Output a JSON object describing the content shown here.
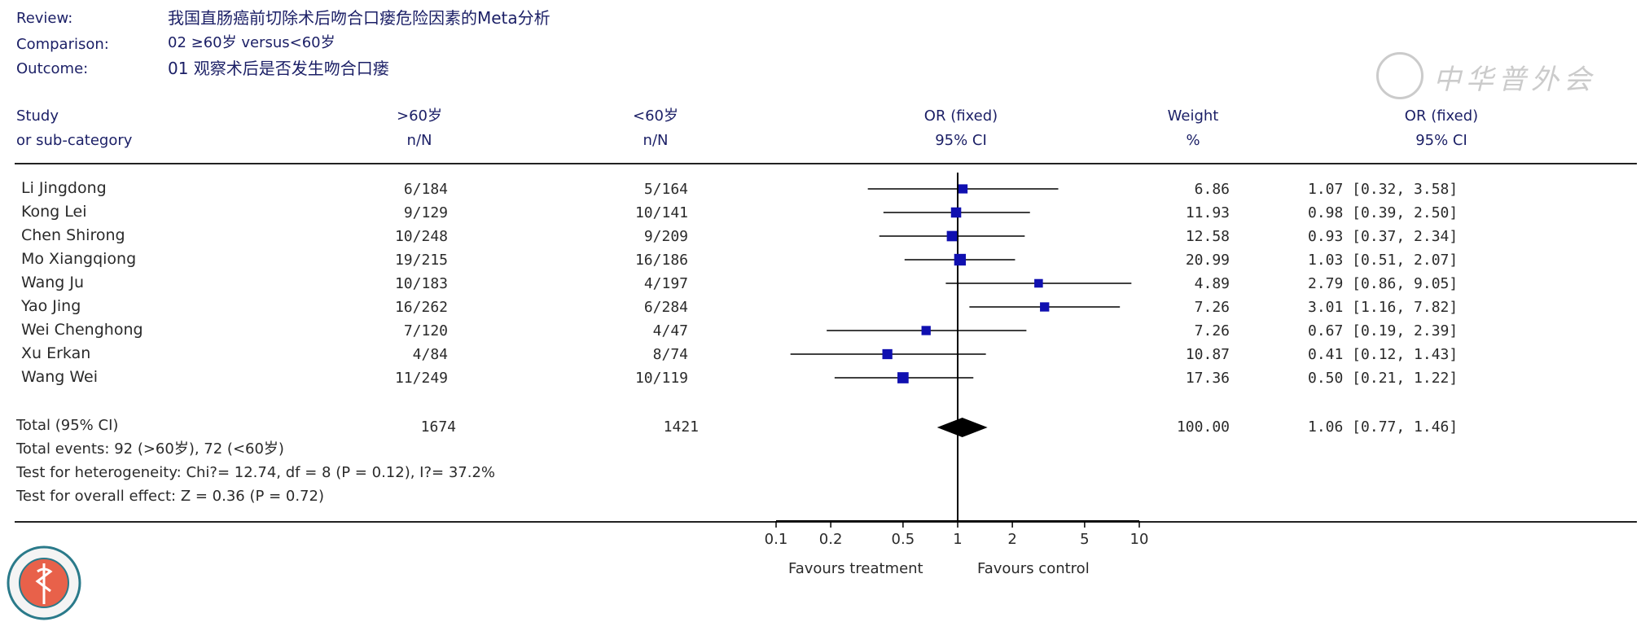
{
  "header": {
    "review_label": "Review:",
    "review_value": "我国直肠癌前切除术后吻合口瘘危险因素的Meta分析",
    "comparison_label": "Comparison:",
    "comparison_value": "02 ≥60岁 versus<60岁",
    "outcome_label": "Outcome:",
    "outcome_value": "01 观察术后是否发生吻合口瘘"
  },
  "watermark": "中华普外会",
  "columns": {
    "study_l1": "Study",
    "study_l2": "or sub-category",
    "g1_l1": ">60岁",
    "g1_l2": "n/N",
    "g2_l1": "<60岁",
    "g2_l2": "n/N",
    "or_l1": "OR (fixed)",
    "or_l2": "95% CI",
    "weight_l1": "Weight",
    "weight_l2": "%",
    "orv_l1": "OR (fixed)",
    "orv_l2": "95% CI"
  },
  "studies": [
    {
      "name": "Li Jingdong",
      "g1": "6/184",
      "g2": "5/164",
      "weight": "6.86",
      "ci_text": "1.07 [0.32, 3.58]"
    },
    {
      "name": "Kong Lei",
      "g1": "9/129",
      "g2": "10/141",
      "weight": "11.93",
      "ci_text": "0.98 [0.39, 2.50]"
    },
    {
      "name": "Chen Shirong",
      "g1": "10/248",
      "g2": "9/209",
      "weight": "12.58",
      "ci_text": "0.93 [0.37, 2.34]"
    },
    {
      "name": "Mo Xiangqiong",
      "g1": "19/215",
      "g2": "16/186",
      "weight": "20.99",
      "ci_text": "1.03 [0.51, 2.07]"
    },
    {
      "name": "Wang Ju",
      "g1": "10/183",
      "g2": "4/197",
      "weight": "4.89",
      "ci_text": "2.79 [0.86, 9.05]"
    },
    {
      "name": "Yao Jing",
      "g1": "16/262",
      "g2": "6/284",
      "weight": "7.26",
      "ci_text": "3.01 [1.16, 7.82]"
    },
    {
      "name": "Wei Chenghong",
      "g1": "7/120",
      "g2": "4/47",
      "weight": "7.26",
      "ci_text": "0.67 [0.19, 2.39]"
    },
    {
      "name": "Xu Erkan",
      "g1": "4/84",
      "g2": "8/74",
      "weight": "10.87",
      "ci_text": "0.41 [0.12, 1.43]"
    },
    {
      "name": "Wang Wei",
      "g1": "11/249",
      "g2": "10/119",
      "weight": "17.36",
      "ci_text": "0.50 [0.21, 1.22]"
    }
  ],
  "total": {
    "label": "Total (95% CI)",
    "g1": "1674",
    "g2": "1421",
    "weight": "100.00",
    "ci_text": "1.06 [0.77, 1.46]",
    "events": "Total events: 92 (>60岁), 72 (<60岁)",
    "heterogeneity": "Test for heterogeneity: Chi?= 12.74, df = 8 (P = 0.12), I?= 37.2%",
    "overall": "Test for overall effect: Z = 0.36 (P = 0.72)"
  },
  "axis": {
    "favours_left": "Favours treatment",
    "favours_right": "Favours control"
  },
  "colors": {
    "marker": "#1010b0",
    "line": "#000000",
    "header_text": "#1b1f66"
  },
  "chart_data": {
    "type": "forest",
    "scale": "log",
    "xlim": [
      0.1,
      10
    ],
    "ticks": [
      0.1,
      0.2,
      0.5,
      1,
      2,
      5,
      10
    ],
    "tick_labels": [
      "0.1",
      "0.2",
      "0.5",
      "1",
      "2",
      "5",
      "10"
    ],
    "xlabel_left": "Favours treatment",
    "xlabel_right": "Favours control",
    "reference_line": 1,
    "studies": [
      {
        "name": "Li Jingdong",
        "or": 1.07,
        "lower": 0.32,
        "upper": 3.58,
        "weight": 6.86
      },
      {
        "name": "Kong Lei",
        "or": 0.98,
        "lower": 0.39,
        "upper": 2.5,
        "weight": 11.93
      },
      {
        "name": "Chen Shirong",
        "or": 0.93,
        "lower": 0.37,
        "upper": 2.34,
        "weight": 12.58
      },
      {
        "name": "Mo Xiangqiong",
        "or": 1.03,
        "lower": 0.51,
        "upper": 2.07,
        "weight": 20.99
      },
      {
        "name": "Wang Ju",
        "or": 2.79,
        "lower": 0.86,
        "upper": 9.05,
        "weight": 4.89
      },
      {
        "name": "Yao Jing",
        "or": 3.01,
        "lower": 1.16,
        "upper": 7.82,
        "weight": 7.26
      },
      {
        "name": "Wei Chenghong",
        "or": 0.67,
        "lower": 0.19,
        "upper": 2.39,
        "weight": 7.26
      },
      {
        "name": "Xu Erkan",
        "or": 0.41,
        "lower": 0.12,
        "upper": 1.43,
        "weight": 10.87
      },
      {
        "name": "Wang Wei",
        "or": 0.5,
        "lower": 0.21,
        "upper": 1.22,
        "weight": 17.36
      }
    ],
    "pooled": {
      "label": "Total (95% CI)",
      "or": 1.06,
      "lower": 0.77,
      "upper": 1.46,
      "weight": 100.0
    }
  }
}
